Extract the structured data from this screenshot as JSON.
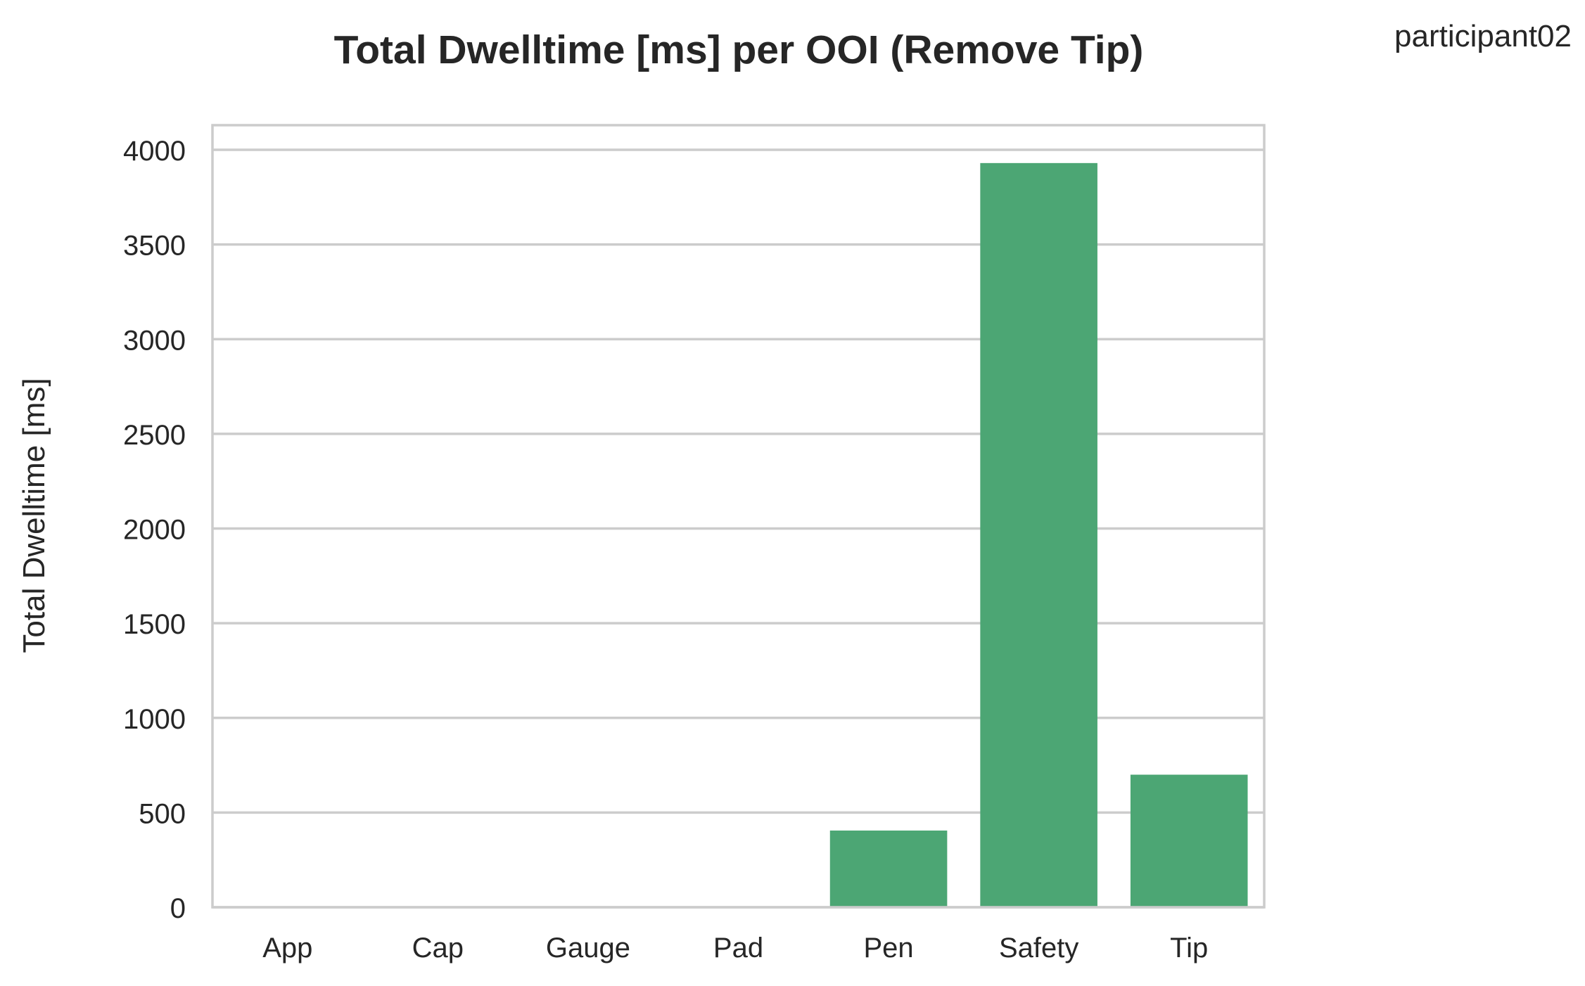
{
  "chart_data": {
    "type": "bar",
    "title": "Total Dwelltime [ms] per OOI (Remove Tip)",
    "annotation": "participant02",
    "xlabel": "",
    "ylabel": "Total Dwelltime [ms]",
    "categories": [
      "App",
      "Cap",
      "Gauge",
      "Pad",
      "Pen",
      "Safety",
      "Tip"
    ],
    "values": [
      0,
      0,
      0,
      0,
      405,
      3930,
      700
    ],
    "ylim": [
      0,
      4130
    ],
    "yticks": [
      0,
      500,
      1000,
      1500,
      2000,
      2500,
      3000,
      3500,
      4000
    ],
    "grid": true,
    "bar_color": "#4ca674",
    "grid_color": "#cccccc",
    "frame_color": "#cccccc"
  }
}
